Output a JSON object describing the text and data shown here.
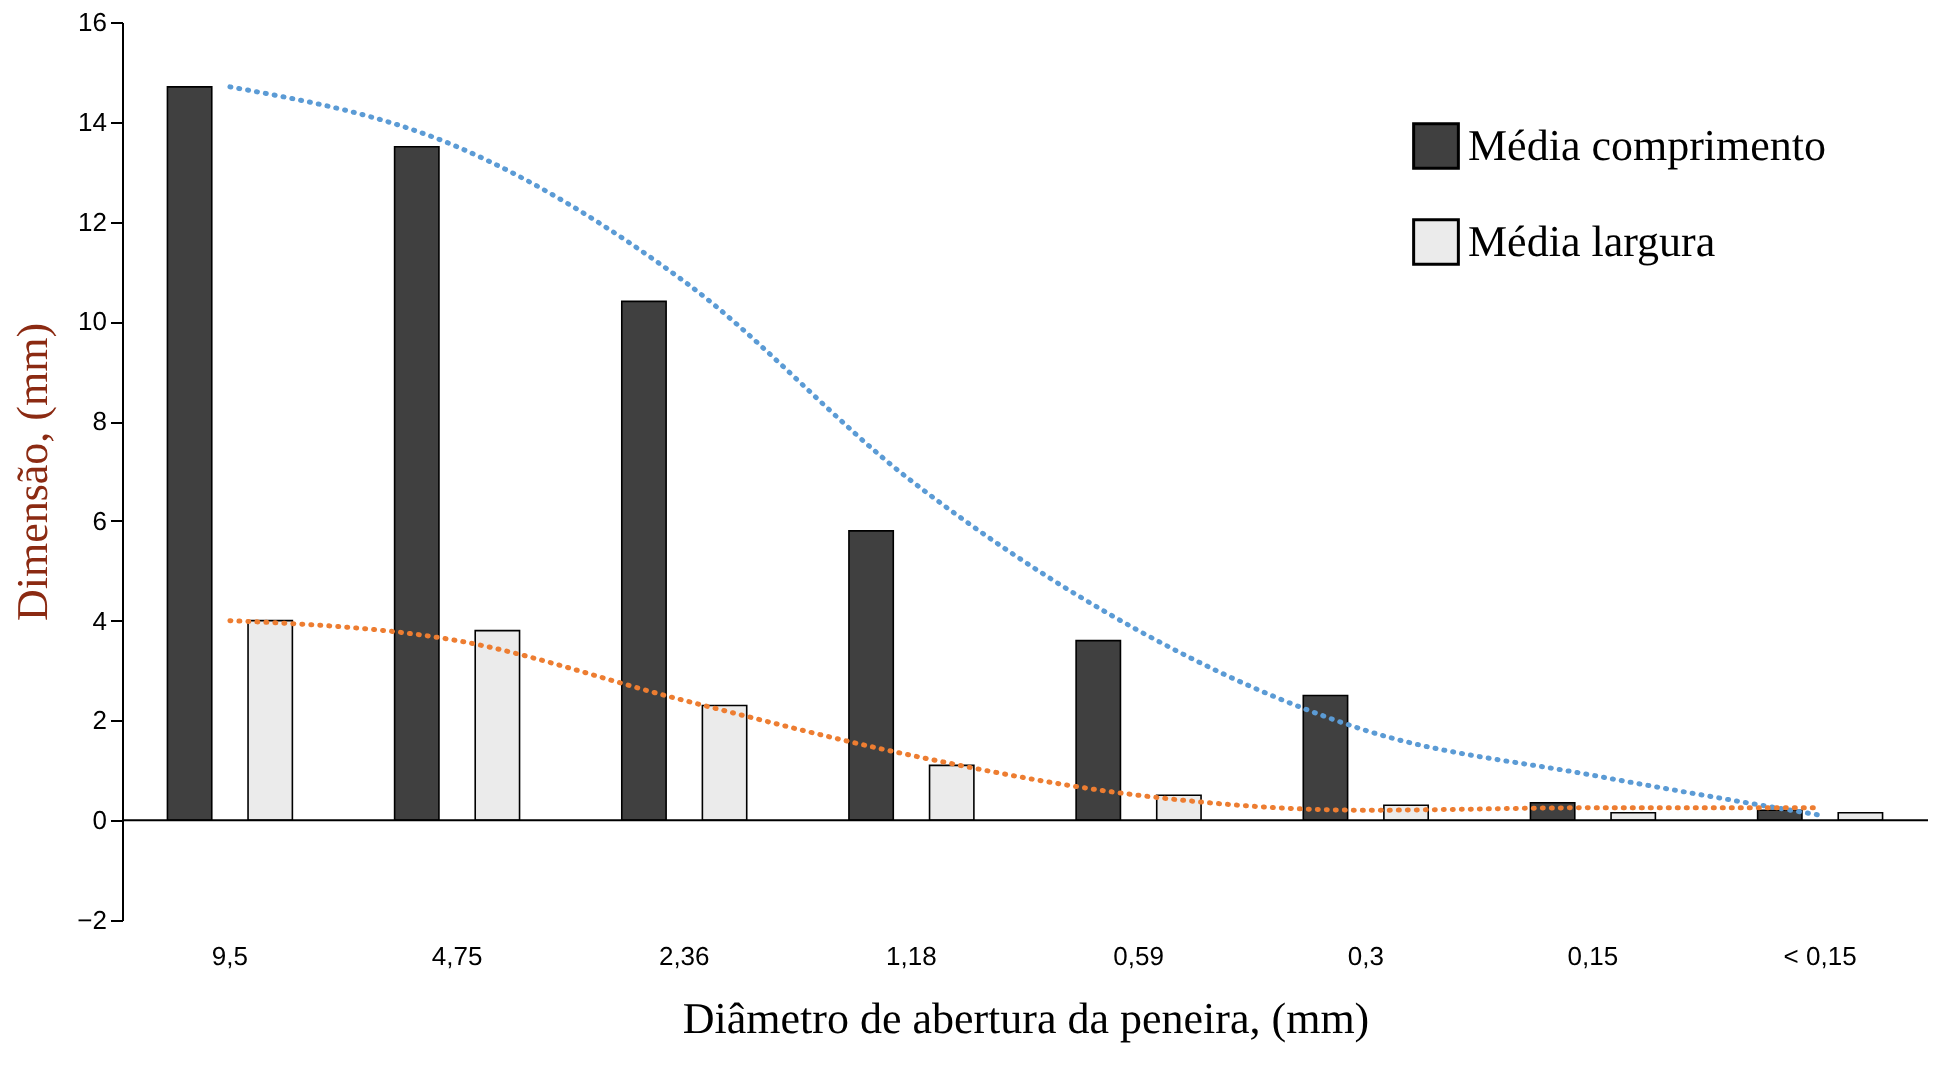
{
  "chart_data": {
    "type": "bar",
    "xlabel": "Diâmetro de abertura da peneira, (mm)",
    "ylabel": "Dimensão, (mm)",
    "categories": [
      "9,5",
      "4,75",
      "2,36",
      "1,18",
      "0,59",
      "0,3",
      "0,15",
      "< 0,15"
    ],
    "series": [
      {
        "name": "Média comprimento",
        "color": "#404040",
        "values": [
          14.7,
          13.5,
          10.4,
          5.8,
          3.6,
          2.5,
          0.35,
          0.2
        ]
      },
      {
        "name": "Média largura",
        "color": "#ebebeb",
        "values": [
          4.0,
          3.8,
          2.3,
          1.1,
          0.5,
          0.3,
          0.15,
          0.15
        ]
      },
      {
        "type": "line",
        "color": "#5b9bd5",
        "line_style": "dotted",
        "values": [
          14.7,
          13.5,
          10.8,
          6.8,
          3.8,
          1.8,
          0.9,
          0.1
        ]
      },
      {
        "type": "line",
        "color": "#ed7d31",
        "line_style": "dotted",
        "values": [
          4.0,
          3.6,
          2.4,
          1.3,
          0.5,
          0.2,
          0.25,
          0.25
        ]
      }
    ],
    "ylim": [
      -2,
      16
    ],
    "yticks": [
      -2,
      0,
      2,
      4,
      6,
      8,
      10,
      12,
      14,
      16
    ],
    "legend": "top right"
  }
}
